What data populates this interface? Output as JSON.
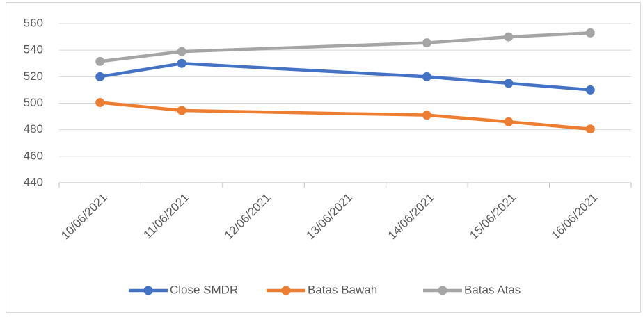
{
  "chart_data": {
    "type": "line",
    "categories": [
      "10/06/2021",
      "11/06/2021",
      "12/06/2021",
      "13/06/2021",
      "14/06/2021",
      "15/06/2021",
      "16/06/2021"
    ],
    "x": [
      "10/06/2021",
      "11/06/2021",
      "14/06/2021",
      "15/06/2021",
      "16/06/2021"
    ],
    "series": [
      {
        "name": "Close SMDR",
        "color": "#4472c4",
        "values": [
          520,
          530,
          520,
          515,
          510
        ]
      },
      {
        "name": "Batas Bawah",
        "color": "#ed7d31",
        "values": [
          500.5,
          494.5,
          491,
          486,
          480.5
        ]
      },
      {
        "name": "Batas Atas",
        "color": "#a5a5a5",
        "values": [
          531.5,
          539,
          545.5,
          550,
          553
        ]
      }
    ],
    "ylim": [
      440,
      560
    ],
    "yticks": [
      440,
      460,
      480,
      500,
      520,
      540,
      560
    ],
    "grid": true,
    "legend": "bottom"
  }
}
